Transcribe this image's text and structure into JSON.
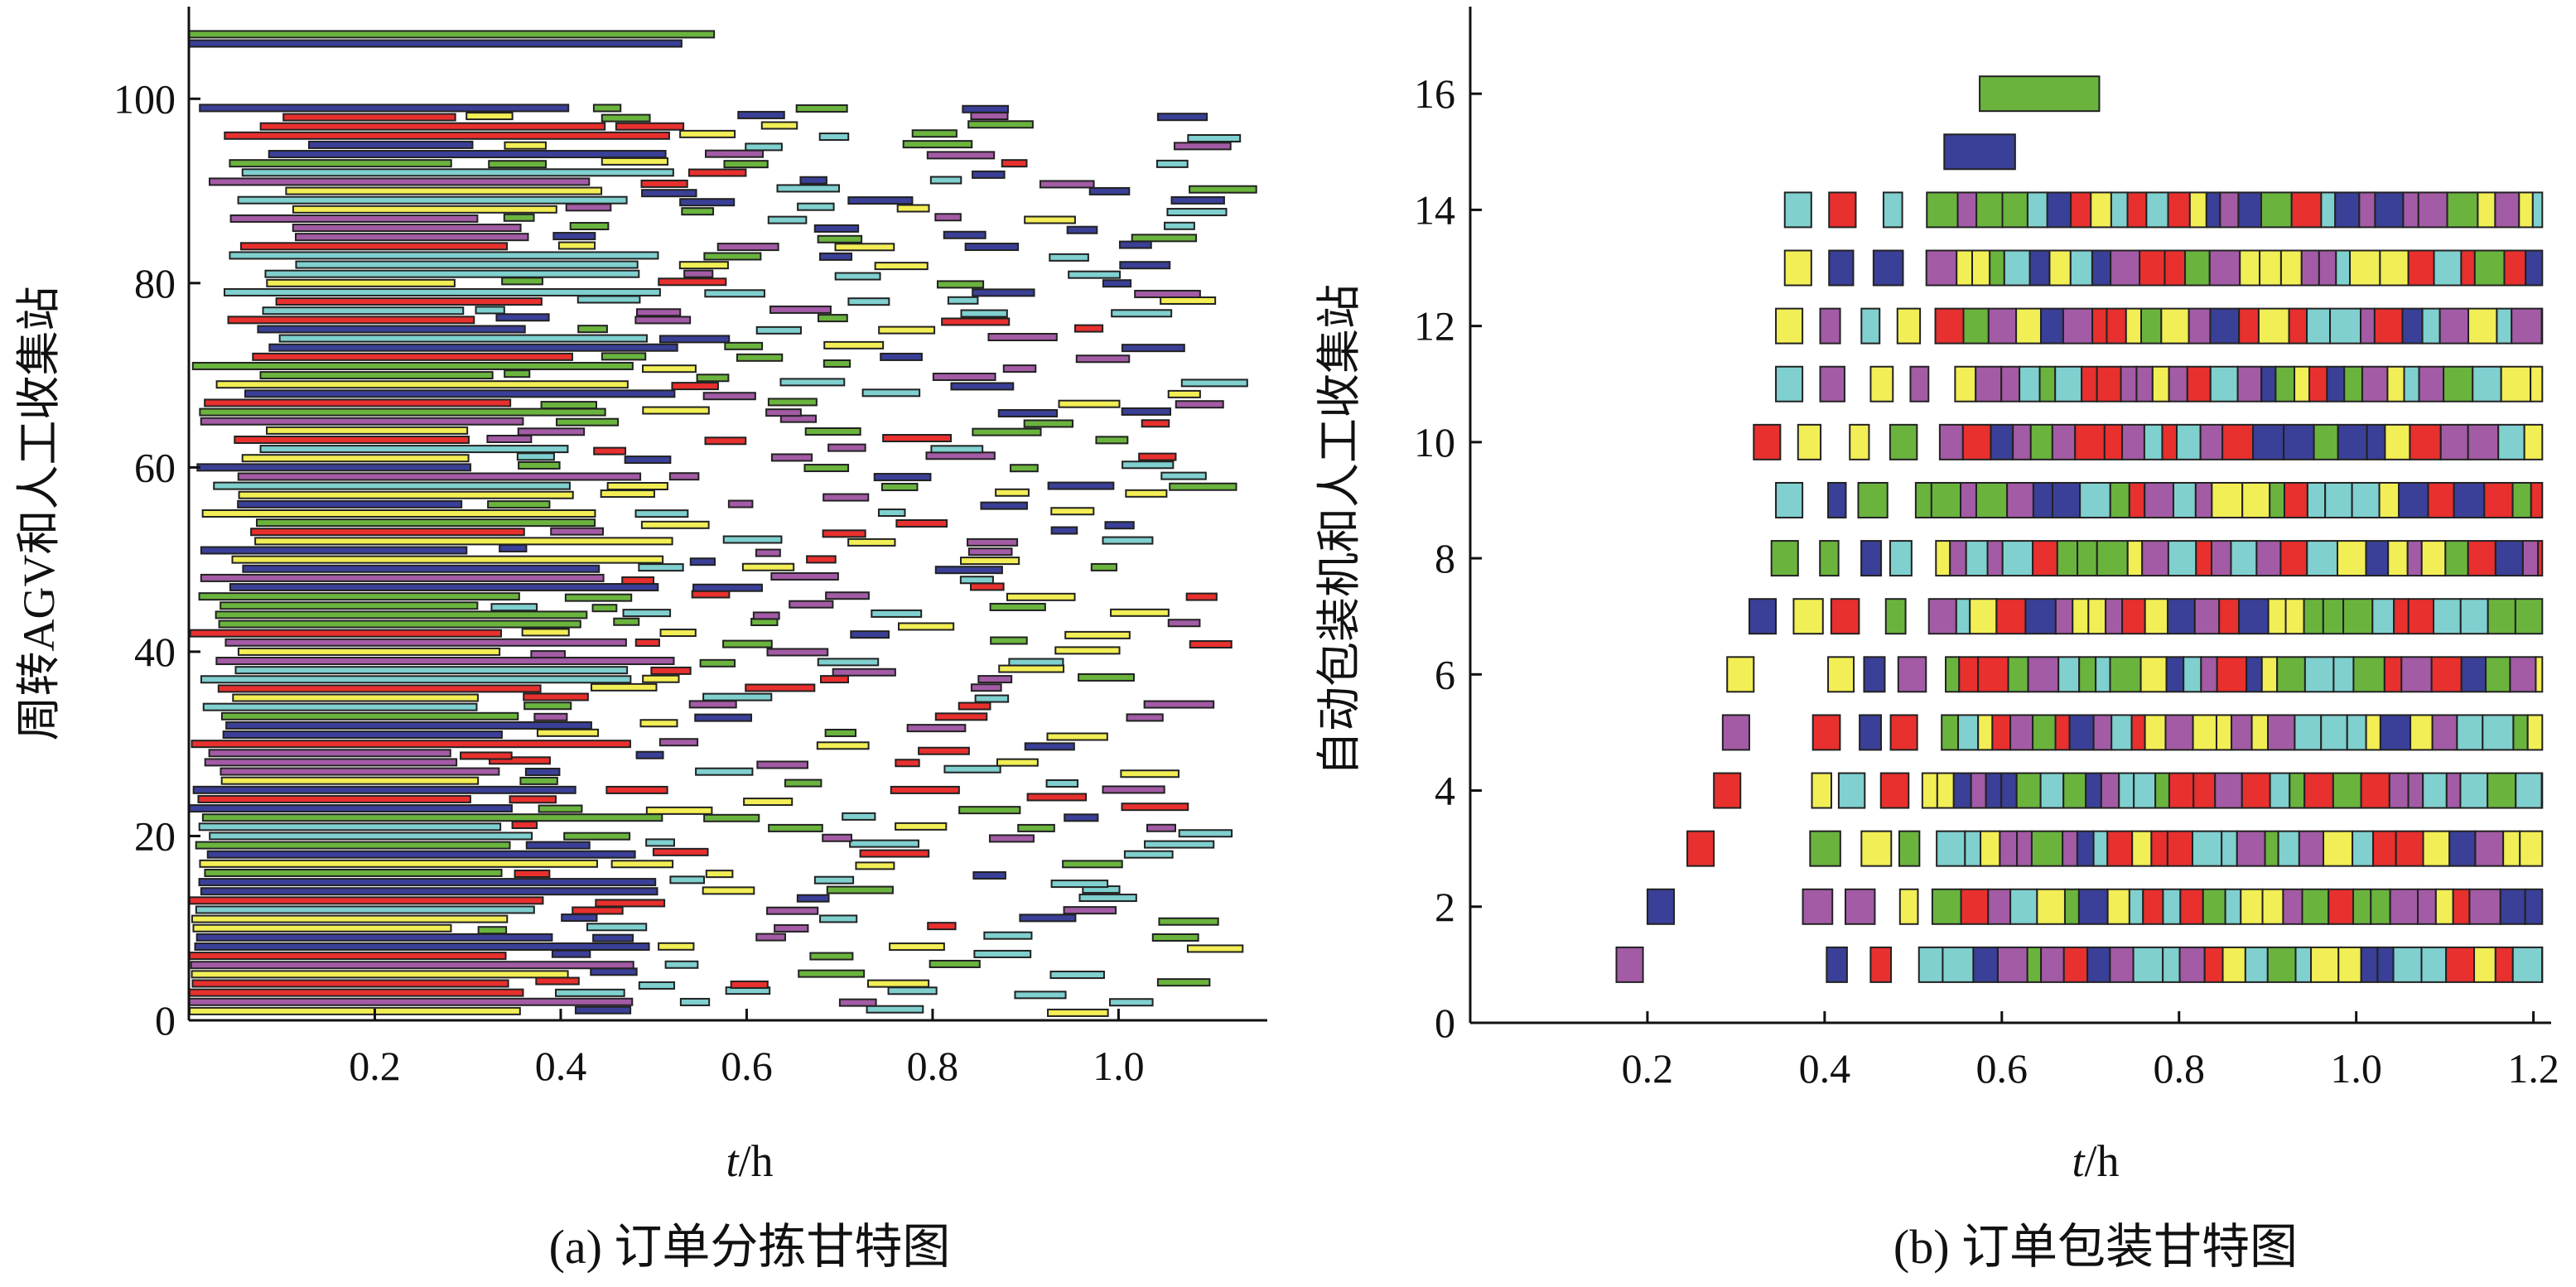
{
  "colors": {
    "green": "#6ab43e",
    "navy": "#3a3f97",
    "red": "#e8302e",
    "yellow": "#f2ee55",
    "cyan": "#7fd0cf",
    "purple": "#a35ba5"
  },
  "chart_data": [
    {
      "type": "gantt",
      "caption": "(a) 订单分拣甘特图",
      "xlabel_italic": "t",
      "xlabel_rest": "/h",
      "ylabel": "周转AGV和人工收集站",
      "xlim": [
        0,
        1.16
      ],
      "ylim": [
        0,
        110
      ],
      "xticks": [
        "0.2",
        "0.4",
        "0.6",
        "0.8",
        "1.0"
      ],
      "xtick_values": [
        0.2,
        0.4,
        0.6,
        0.8,
        1.0
      ],
      "yticks": [
        "0",
        "20",
        "40",
        "60",
        "80",
        "100"
      ],
      "ytick_values": [
        0,
        20,
        40,
        60,
        80,
        100
      ],
      "tasks_note": "Approximately 100 AGV/station rows; leftmost long bars start ~0.0–0.15 h and end ~0.28–0.57 h, followed by short task bars out to ~1.1 h",
      "tasks": [
        {
          "row": 107,
          "start": 0.0,
          "end": 0.565,
          "color": "green"
        },
        {
          "row": 106,
          "start": 0.0,
          "end": 0.53,
          "color": "navy"
        }
      ]
    },
    {
      "type": "gantt",
      "caption": "(b) 订单包装甘特图",
      "xlabel_italic": "t",
      "xlabel_rest": "/h",
      "ylabel": "自动包装机和人工收集站",
      "xlim": [
        0.0,
        1.22
      ],
      "ylim": [
        0,
        17.5
      ],
      "xticks": [
        "0.2",
        "0.4",
        "0.6",
        "0.8",
        "1.0",
        "1.2"
      ],
      "xtick_values": [
        0.2,
        0.4,
        0.6,
        0.8,
        1.0,
        1.2
      ],
      "yticks": [
        "0",
        "2",
        "4",
        "6",
        "8",
        "10",
        "12",
        "14",
        "16"
      ],
      "ytick_values": [
        0,
        2,
        4,
        6,
        8,
        10,
        12,
        14,
        16
      ],
      "first_task_start": {
        "1": 0.165,
        "2": 0.2,
        "3": 0.245,
        "4": 0.275,
        "5": 0.285,
        "6": 0.29,
        "7": 0.315,
        "8": 0.34,
        "9": 0.345,
        "10": 0.32,
        "11": 0.345,
        "12": 0.345,
        "13": 0.355,
        "14": 0.355
      },
      "end_time": 1.21,
      "tasks": [
        {
          "row": 16,
          "start": 0.575,
          "end": 0.71,
          "color": "green"
        },
        {
          "row": 15,
          "start": 0.535,
          "end": 0.615,
          "color": "navy"
        }
      ]
    }
  ]
}
